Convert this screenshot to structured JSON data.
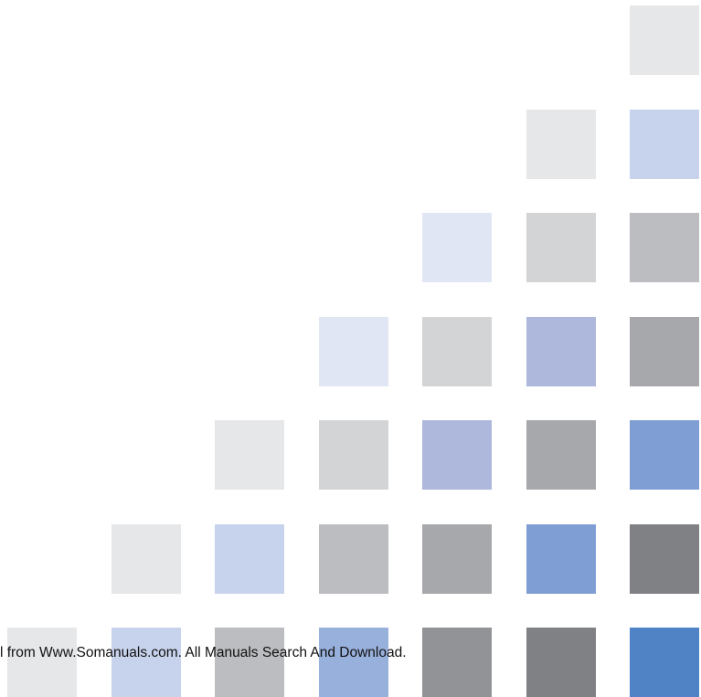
{
  "footer": {
    "text": "l from Www.Somanuals.com. All Manuals Search And Download."
  },
  "palette": {
    "grey_lightest": "#e6e7e9",
    "grey_light": "#d3d4d6",
    "grey_mid_light": "#bcbdc0",
    "grey_mid": "#a7a8ab",
    "grey_dark": "#929396",
    "grey_darkest": "#808184",
    "blue_lightest": "#e0e6f4",
    "blue_light": "#c7d3ec",
    "lavender": "#aeb7dc",
    "blue_mid_light": "#98b0dc",
    "blue_mid": "#7f9fd4",
    "blue_strong": "#5083c6"
  },
  "tiles": [
    {
      "row": 0,
      "col": 6,
      "color": "grey_lightest"
    },
    {
      "row": 1,
      "col": 5,
      "color": "grey_lightest"
    },
    {
      "row": 1,
      "col": 6,
      "color": "blue_light"
    },
    {
      "row": 2,
      "col": 4,
      "color": "blue_lightest"
    },
    {
      "row": 2,
      "col": 5,
      "color": "grey_light"
    },
    {
      "row": 2,
      "col": 6,
      "color": "grey_mid_light"
    },
    {
      "row": 3,
      "col": 3,
      "color": "blue_lightest"
    },
    {
      "row": 3,
      "col": 4,
      "color": "grey_light"
    },
    {
      "row": 3,
      "col": 5,
      "color": "lavender"
    },
    {
      "row": 3,
      "col": 6,
      "color": "grey_mid"
    },
    {
      "row": 4,
      "col": 2,
      "color": "grey_lightest"
    },
    {
      "row": 4,
      "col": 3,
      "color": "grey_light"
    },
    {
      "row": 4,
      "col": 4,
      "color": "lavender"
    },
    {
      "row": 4,
      "col": 5,
      "color": "grey_mid"
    },
    {
      "row": 4,
      "col": 6,
      "color": "blue_mid"
    },
    {
      "row": 5,
      "col": 1,
      "color": "grey_lightest"
    },
    {
      "row": 5,
      "col": 2,
      "color": "blue_light"
    },
    {
      "row": 5,
      "col": 3,
      "color": "grey_mid_light"
    },
    {
      "row": 5,
      "col": 4,
      "color": "grey_mid"
    },
    {
      "row": 5,
      "col": 5,
      "color": "blue_mid"
    },
    {
      "row": 5,
      "col": 6,
      "color": "grey_darkest"
    },
    {
      "row": 6,
      "col": 0,
      "color": "grey_lightest"
    },
    {
      "row": 6,
      "col": 1,
      "color": "blue_light"
    },
    {
      "row": 6,
      "col": 2,
      "color": "grey_mid_light"
    },
    {
      "row": 6,
      "col": 3,
      "color": "blue_mid_light"
    },
    {
      "row": 6,
      "col": 4,
      "color": "grey_dark"
    },
    {
      "row": 6,
      "col": 5,
      "color": "grey_darkest"
    },
    {
      "row": 6,
      "col": 6,
      "color": "blue_strong"
    }
  ]
}
